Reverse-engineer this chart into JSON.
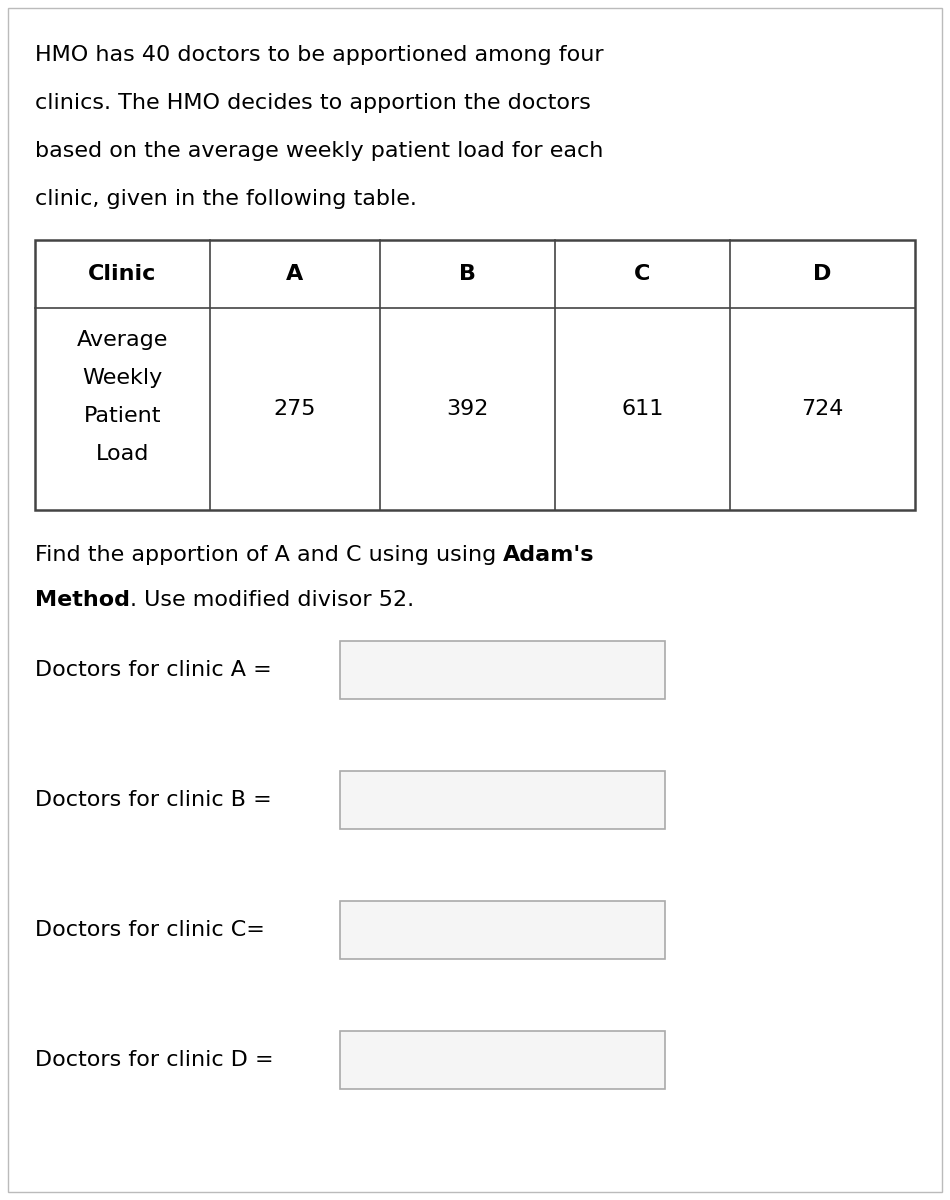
{
  "background_color": "#ffffff",
  "text_color": "#000000",
  "border_color": "#cccccc",
  "table_border_color": "#444444",
  "intro_lines": [
    "HMO has 40 doctors to be apportioned among four",
    "clinics. The HMO decides to apportion the doctors",
    "based on the average weekly patient load for each",
    "clinic, given in the following table."
  ],
  "table_headers": [
    "Clinic",
    "A",
    "B",
    "C",
    "D"
  ],
  "table_row_label_lines": [
    "Average",
    "Weekly",
    "Patient",
    "Load"
  ],
  "table_values": [
    "275",
    "392",
    "611",
    "724"
  ],
  "find_line1_parts": [
    {
      "text": "Find the apportion of A and C using using ",
      "bold": false
    },
    {
      "text": "Adam's",
      "bold": true
    }
  ],
  "find_line2_parts": [
    {
      "text": "Method",
      "bold": true
    },
    {
      "text": ". Use modified divisor 52.",
      "bold": false
    }
  ],
  "input_labels": [
    "Doctors for clinic A =",
    "Doctors for clinic B =",
    "Doctors for clinic C=",
    "Doctors for clinic D ="
  ],
  "font_size": 16,
  "title_font_size": 16
}
